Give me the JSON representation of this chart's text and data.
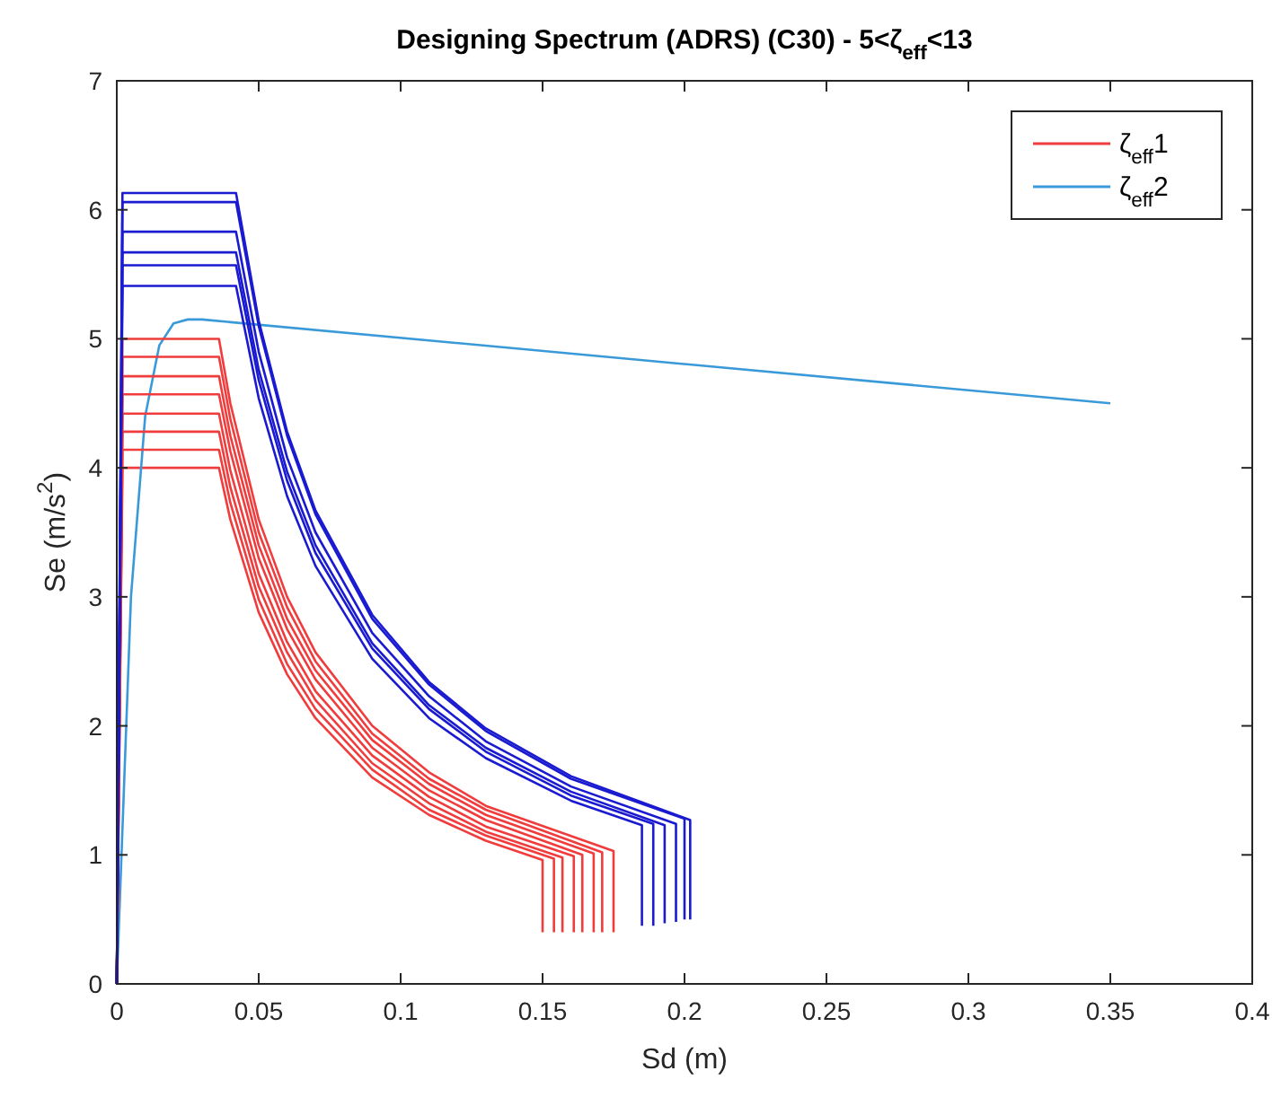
{
  "chart_data": {
    "type": "line",
    "title": "Designing Spectrum (ADRS) (C30) - 5<ζ$_{eff}$<13",
    "xlabel": "Sd (m)",
    "ylabel": "Se (m/s$^{2}$)",
    "xlim": [
      0,
      0.4
    ],
    "ylim": [
      0,
      7
    ],
    "xticks": [
      0,
      0.05,
      0.1,
      0.15,
      0.2,
      0.25,
      0.3,
      0.35,
      0.4
    ],
    "yticks": [
      0,
      1,
      2,
      3,
      4,
      5,
      6,
      7
    ],
    "grid": false,
    "legend": "top right",
    "marker": "none",
    "line_style": "solid",
    "series": [
      {
        "name": "ζ$_{eff}$1",
        "color": "#f03c3c",
        "x": [
          0,
          0.002,
          0.036,
          0.04,
          0.05,
          0.06,
          0.07,
          0.09,
          0.11,
          0.13,
          0.15,
          0.15
        ],
        "values": [
          0,
          4.0,
          4.0,
          3.6,
          2.88,
          2.4,
          2.06,
          1.6,
          1.31,
          1.11,
          0.96,
          0.4
        ]
      },
      {
        "name": "ζ$_{eff}$2",
        "color": "#3a9ad9",
        "x": [
          0,
          0.005,
          0.01,
          0.015,
          0.02,
          0.025,
          0.03,
          0.35
        ],
        "values": [
          0,
          3.0,
          4.4,
          4.95,
          5.12,
          5.15,
          5.15,
          4.5
        ]
      },
      {
        "color": "#f03c3c",
        "x": [
          0,
          0.002,
          0.036,
          0.04,
          0.05,
          0.06,
          0.07,
          0.09,
          0.11,
          0.13,
          0.154,
          0.154
        ],
        "values": [
          0,
          4.14,
          4.14,
          3.73,
          2.98,
          2.48,
          2.13,
          1.66,
          1.35,
          1.15,
          0.97,
          0.4
        ]
      },
      {
        "color": "#f03c3c",
        "x": [
          0,
          0.002,
          0.036,
          0.04,
          0.05,
          0.06,
          0.07,
          0.09,
          0.11,
          0.13,
          0.157,
          0.157
        ],
        "values": [
          0,
          4.28,
          4.28,
          3.85,
          3.08,
          2.57,
          2.2,
          1.71,
          1.4,
          1.18,
          0.98,
          0.4
        ]
      },
      {
        "color": "#f03c3c",
        "x": [
          0,
          0.002,
          0.036,
          0.04,
          0.05,
          0.06,
          0.07,
          0.09,
          0.11,
          0.13,
          0.161,
          0.161
        ],
        "values": [
          0,
          4.42,
          4.42,
          3.98,
          3.18,
          2.65,
          2.27,
          1.77,
          1.45,
          1.22,
          0.99,
          0.4
        ]
      },
      {
        "color": "#f03c3c",
        "x": [
          0,
          0.002,
          0.036,
          0.04,
          0.05,
          0.06,
          0.07,
          0.09,
          0.11,
          0.13,
          0.164,
          0.164
        ],
        "values": [
          0,
          4.57,
          4.57,
          4.13,
          3.3,
          2.75,
          2.36,
          1.83,
          1.5,
          1.27,
          1.0,
          0.4
        ]
      },
      {
        "color": "#f03c3c",
        "x": [
          0,
          0.002,
          0.036,
          0.04,
          0.05,
          0.06,
          0.07,
          0.09,
          0.11,
          0.13,
          0.168,
          0.168
        ],
        "values": [
          0,
          4.71,
          4.71,
          4.25,
          3.4,
          2.83,
          2.43,
          1.89,
          1.55,
          1.31,
          1.01,
          0.4
        ]
      },
      {
        "color": "#f03c3c",
        "x": [
          0,
          0.002,
          0.036,
          0.04,
          0.05,
          0.06,
          0.07,
          0.09,
          0.11,
          0.13,
          0.171,
          0.171
        ],
        "values": [
          0,
          4.86,
          4.86,
          4.38,
          3.5,
          2.92,
          2.5,
          1.94,
          1.59,
          1.35,
          1.02,
          0.4
        ]
      },
      {
        "color": "#f03c3c",
        "x": [
          0,
          0.002,
          0.036,
          0.04,
          0.05,
          0.06,
          0.07,
          0.09,
          0.11,
          0.13,
          0.175,
          0.175
        ],
        "values": [
          0,
          5.0,
          5.0,
          4.5,
          3.6,
          3.0,
          2.57,
          2.0,
          1.64,
          1.38,
          1.03,
          0.4
        ]
      },
      {
        "color": "#1a1ad0",
        "x": [
          0,
          0.002,
          0.042,
          0.05,
          0.06,
          0.07,
          0.09,
          0.11,
          0.13,
          0.16,
          0.185,
          0.185
        ],
        "values": [
          0,
          5.41,
          5.41,
          4.54,
          3.78,
          3.24,
          2.52,
          2.06,
          1.75,
          1.42,
          1.23,
          0.45
        ]
      },
      {
        "color": "#1a1ad0",
        "x": [
          0,
          0.002,
          0.042,
          0.05,
          0.06,
          0.07,
          0.09,
          0.11,
          0.13,
          0.16,
          0.189,
          0.189
        ],
        "values": [
          0,
          5.57,
          5.57,
          4.68,
          3.9,
          3.34,
          2.6,
          2.13,
          1.8,
          1.46,
          1.24,
          0.45
        ]
      },
      {
        "color": "#1a1ad0",
        "x": [
          0,
          0.002,
          0.042,
          0.05,
          0.06,
          0.07,
          0.09,
          0.11,
          0.13,
          0.16,
          0.193,
          0.193
        ],
        "values": [
          0,
          5.67,
          5.67,
          4.76,
          3.97,
          3.4,
          2.64,
          2.16,
          1.83,
          1.49,
          1.23,
          0.47
        ]
      },
      {
        "color": "#1a1ad0",
        "x": [
          0,
          0.002,
          0.042,
          0.05,
          0.06,
          0.07,
          0.09,
          0.11,
          0.13,
          0.16,
          0.197,
          0.197
        ],
        "values": [
          0,
          5.83,
          5.83,
          4.9,
          4.08,
          3.5,
          2.72,
          2.23,
          1.88,
          1.53,
          1.24,
          0.48
        ]
      },
      {
        "color": "#1a1ad0",
        "x": [
          0,
          0.002,
          0.042,
          0.05,
          0.06,
          0.07,
          0.09,
          0.11,
          0.13,
          0.16,
          0.2,
          0.2
        ],
        "values": [
          0,
          6.06,
          6.06,
          5.1,
          4.25,
          3.64,
          2.83,
          2.32,
          1.96,
          1.59,
          1.28,
          0.5
        ]
      },
      {
        "color": "#1a1ad0",
        "x": [
          0,
          0.002,
          0.042,
          0.05,
          0.06,
          0.07,
          0.09,
          0.11,
          0.13,
          0.16,
          0.202,
          0.202
        ],
        "values": [
          0,
          6.13,
          6.13,
          5.14,
          4.28,
          3.67,
          2.86,
          2.34,
          1.98,
          1.61,
          1.27,
          0.5
        ]
      }
    ]
  }
}
